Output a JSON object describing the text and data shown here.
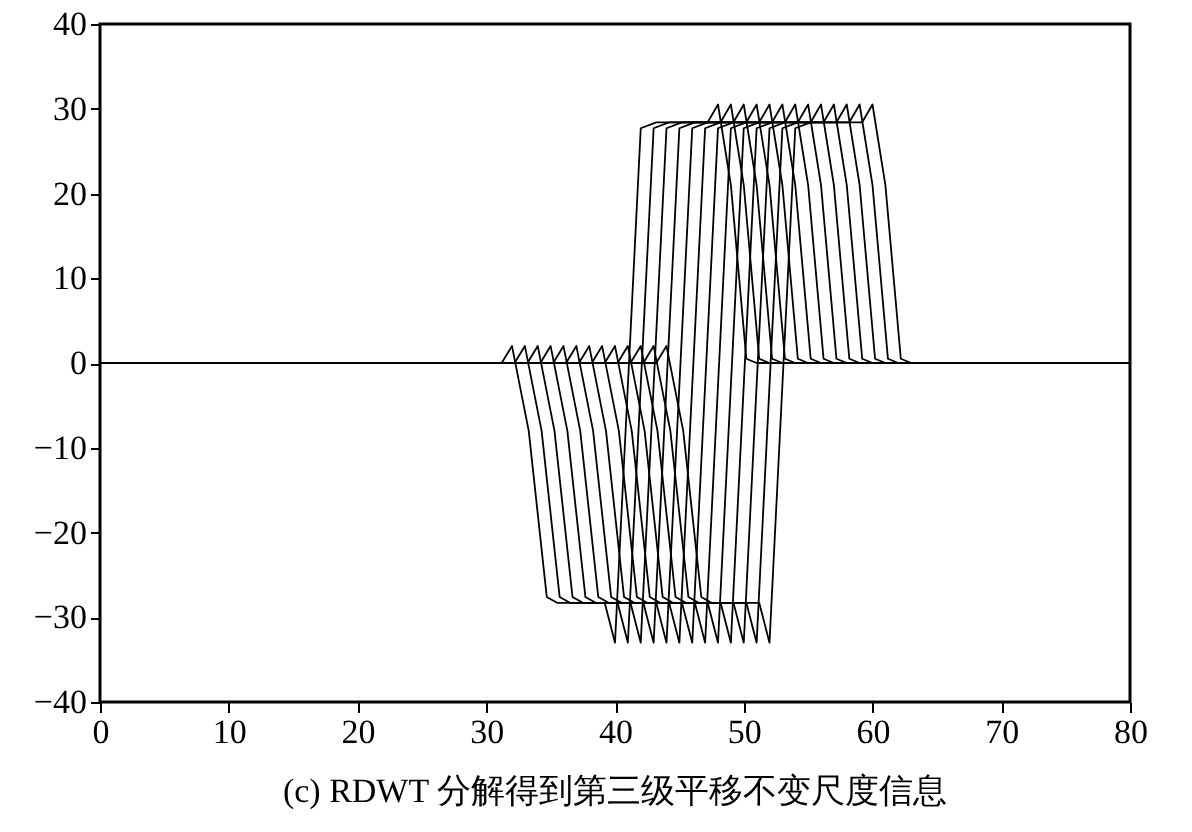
{
  "chart_data": {
    "type": "line",
    "title": "(c) RDWT 分解得到第三级平移不变尺度信息",
    "xlim": [
      0,
      80
    ],
    "xticks": [
      0,
      10,
      20,
      30,
      40,
      50,
      60,
      70,
      80
    ],
    "ylim": [
      -40,
      40
    ],
    "yticks": [
      -40,
      -30,
      -20,
      -10,
      0,
      10,
      20,
      30,
      40
    ],
    "grid": false,
    "series": [
      {
        "color": "#000000",
        "x": [
          0,
          31.2,
          32,
          33.3,
          34.7,
          35.5,
          39.2,
          40,
          42,
          43.2,
          47.2,
          48,
          49,
          50.2,
          51,
          80
        ],
        "values": [
          0,
          0,
          2,
          -8,
          -27.6,
          -28.3,
          -28.3,
          -33,
          27.7,
          28.4,
          28.4,
          30.5,
          21,
          0.5,
          0,
          0
        ]
      },
      {
        "color": "#000000",
        "x": [
          0,
          32.2,
          33,
          34.3,
          35.7,
          36.5,
          40.2,
          41,
          43,
          44.2,
          48.2,
          49,
          50,
          51.2,
          52,
          80
        ],
        "values": [
          0,
          0,
          2,
          -8,
          -27.6,
          -28.3,
          -28.3,
          -33,
          27.7,
          28.4,
          28.4,
          30.5,
          21,
          0.5,
          0,
          0
        ]
      },
      {
        "color": "#000000",
        "x": [
          0,
          33.2,
          34,
          35.3,
          36.7,
          37.5,
          41.2,
          42,
          44,
          45.2,
          49.2,
          50,
          51,
          52.2,
          53,
          80
        ],
        "values": [
          0,
          0,
          2,
          -8,
          -27.6,
          -28.3,
          -28.3,
          -33,
          27.7,
          28.4,
          28.4,
          30.5,
          21,
          0.5,
          0,
          0
        ]
      },
      {
        "color": "#000000",
        "x": [
          0,
          34.2,
          35,
          36.3,
          37.7,
          38.5,
          42.2,
          43,
          45,
          46.2,
          50.2,
          51,
          52,
          53.2,
          54,
          80
        ],
        "values": [
          0,
          0,
          2,
          -8,
          -27.6,
          -28.3,
          -28.3,
          -33,
          27.7,
          28.4,
          28.4,
          30.5,
          21,
          0.5,
          0,
          0
        ]
      },
      {
        "color": "#000000",
        "x": [
          0,
          35.2,
          36,
          37.3,
          38.7,
          39.5,
          43.2,
          44,
          46,
          47.2,
          51.2,
          52,
          53,
          54.2,
          55,
          80
        ],
        "values": [
          0,
          0,
          2,
          -8,
          -27.6,
          -28.3,
          -28.3,
          -33,
          27.7,
          28.4,
          28.4,
          30.5,
          21,
          0.5,
          0,
          0
        ]
      },
      {
        "color": "#000000",
        "x": [
          0,
          36.2,
          37,
          38.3,
          39.7,
          40.5,
          44.2,
          45,
          47,
          48.2,
          52.2,
          53,
          54,
          55.2,
          56,
          80
        ],
        "values": [
          0,
          0,
          2,
          -8,
          -27.6,
          -28.3,
          -28.3,
          -33,
          27.7,
          28.4,
          28.4,
          30.5,
          21,
          0.5,
          0,
          0
        ]
      },
      {
        "color": "#000000",
        "x": [
          0,
          37.2,
          38,
          39.3,
          40.7,
          41.5,
          45.2,
          46,
          48,
          49.2,
          53.2,
          54,
          55,
          56.2,
          57,
          80
        ],
        "values": [
          0,
          0,
          2,
          -8,
          -27.6,
          -28.3,
          -28.3,
          -33,
          27.7,
          28.4,
          28.4,
          30.5,
          21,
          0.5,
          0,
          0
        ]
      },
      {
        "color": "#000000",
        "x": [
          0,
          38.2,
          39,
          40.3,
          41.7,
          42.5,
          46.2,
          47,
          49,
          50.2,
          54.2,
          55,
          56,
          57.2,
          58,
          80
        ],
        "values": [
          0,
          0,
          2,
          -8,
          -27.6,
          -28.3,
          -28.3,
          -33,
          27.7,
          28.4,
          28.4,
          30.5,
          21,
          0.5,
          0,
          0
        ]
      },
      {
        "color": "#000000",
        "x": [
          0,
          39.2,
          40,
          41.3,
          42.7,
          43.5,
          47.2,
          48,
          50,
          51.2,
          55.2,
          56,
          57,
          58.2,
          59,
          80
        ],
        "values": [
          0,
          0,
          2,
          -8,
          -27.6,
          -28.3,
          -28.3,
          -33,
          27.7,
          28.4,
          28.4,
          30.5,
          21,
          0.5,
          0,
          0
        ]
      },
      {
        "color": "#000000",
        "x": [
          0,
          40.2,
          41,
          42.3,
          43.7,
          44.5,
          48.2,
          49,
          51,
          52.2,
          56.2,
          57,
          58,
          59.2,
          60,
          80
        ],
        "values": [
          0,
          0,
          2,
          -8,
          -27.6,
          -28.3,
          -28.3,
          -33,
          27.7,
          28.4,
          28.4,
          30.5,
          21,
          0.5,
          0,
          0
        ]
      },
      {
        "color": "#000000",
        "x": [
          0,
          41.2,
          42,
          43.3,
          44.7,
          45.5,
          49.2,
          50,
          52,
          53.2,
          57.2,
          58,
          59,
          60.2,
          61,
          80
        ],
        "values": [
          0,
          0,
          2,
          -8,
          -27.6,
          -28.3,
          -28.3,
          -33,
          27.7,
          28.4,
          28.4,
          30.5,
          21,
          0.5,
          0,
          0
        ]
      },
      {
        "color": "#000000",
        "x": [
          0,
          42.2,
          43,
          44.3,
          45.7,
          46.5,
          50.2,
          51,
          53,
          54.2,
          58.2,
          59,
          60,
          61.2,
          62,
          80
        ],
        "values": [
          0,
          0,
          2,
          -8,
          -27.6,
          -28.3,
          -28.3,
          -33,
          27.7,
          28.4,
          28.4,
          30.5,
          21,
          0.5,
          0,
          0
        ]
      },
      {
        "color": "#000000",
        "x": [
          0,
          43.2,
          44,
          45.3,
          46.7,
          47.5,
          51.2,
          52,
          54,
          55.2,
          59.2,
          60,
          61,
          62.2,
          63,
          80
        ],
        "values": [
          0,
          0,
          2,
          -8,
          -27.6,
          -28.3,
          -28.3,
          -33,
          27.7,
          28.4,
          28.4,
          30.5,
          21,
          0.5,
          0,
          0
        ]
      }
    ]
  }
}
